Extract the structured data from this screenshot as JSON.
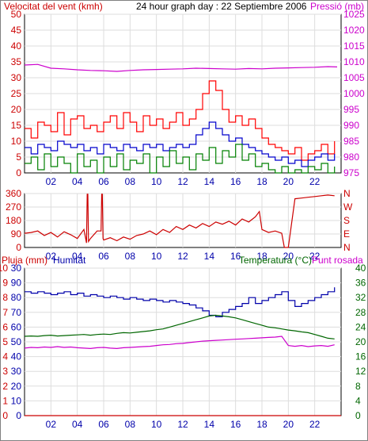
{
  "chart_data": [
    {
      "type": "line",
      "title": "24 hour graph day : 22 Septiembre 2006",
      "left_label": "Velocitat del vent (kmh)",
      "right_label": "Pressió (mb)",
      "left_ticks": [
        "0",
        "5",
        "10",
        "15",
        "20",
        "25",
        "30",
        "35",
        "40",
        "45",
        "50"
      ],
      "right_ticks": [
        "975",
        "980",
        "985",
        "990",
        "995",
        "1000",
        "1005",
        "1010",
        "1015",
        "1020",
        "1025"
      ],
      "ylim": [
        0,
        50
      ],
      "y2lim": [
        975,
        1025
      ],
      "x_ticks": [
        "02",
        "04",
        "06",
        "08",
        "10",
        "12",
        "14",
        "16",
        "18",
        "20",
        "22"
      ],
      "xlim": [
        0,
        24
      ],
      "grid": true,
      "colors": {
        "gust": "#ff0000",
        "average": "#0000cc",
        "minimum": "#008000",
        "pressure": "#cc00cc"
      },
      "series": [
        {
          "key": "gust",
          "axis": "left",
          "x": [
            0,
            0.5,
            1,
            1.5,
            2,
            2.5,
            3,
            3.5,
            4,
            4.5,
            5,
            5.5,
            6,
            6.5,
            7,
            7.5,
            8,
            8.5,
            9,
            9.5,
            10,
            10.5,
            11,
            11.5,
            12,
            12.5,
            13,
            13.5,
            14,
            14.5,
            15,
            15.5,
            16,
            16.5,
            17,
            17.5,
            18,
            18.5,
            19,
            19.5,
            20,
            20.5,
            21,
            21.5,
            22,
            22.5,
            23,
            23.5
          ],
          "values": [
            14,
            11,
            16,
            15,
            13,
            19,
            12,
            17,
            18,
            14,
            15,
            13,
            16,
            18,
            14,
            19,
            16,
            13,
            18,
            15,
            17,
            14,
            16,
            19,
            15,
            17,
            20,
            25,
            29,
            26,
            20,
            16,
            18,
            15,
            17,
            14,
            11,
            9,
            8,
            7,
            6,
            8,
            4,
            6,
            7,
            9,
            6,
            10
          ]
        },
        {
          "key": "average",
          "axis": "left",
          "x": [
            0,
            0.5,
            1,
            1.5,
            2,
            2.5,
            3,
            3.5,
            4,
            4.5,
            5,
            5.5,
            6,
            6.5,
            7,
            7.5,
            8,
            8.5,
            9,
            9.5,
            10,
            10.5,
            11,
            11.5,
            12,
            12.5,
            13,
            13.5,
            14,
            14.5,
            15,
            15.5,
            16,
            16.5,
            17,
            17.5,
            18,
            18.5,
            19,
            19.5,
            20,
            20.5,
            21,
            21.5,
            22,
            22.5,
            23,
            23.5
          ],
          "values": [
            8,
            6,
            9,
            8,
            7,
            10,
            9,
            8,
            9,
            7,
            8,
            6,
            9,
            8,
            7,
            9,
            8,
            7,
            9,
            8,
            9,
            7,
            8,
            9,
            8,
            9,
            12,
            14,
            16,
            14,
            12,
            10,
            11,
            9,
            8,
            7,
            6,
            5,
            4,
            5,
            3,
            4,
            2,
            4,
            5,
            6,
            4,
            6
          ]
        },
        {
          "key": "minimum",
          "axis": "left",
          "x": [
            0,
            0.5,
            1,
            1.5,
            2,
            2.5,
            3,
            3.5,
            4,
            4.5,
            5,
            5.5,
            6,
            6.5,
            7,
            7.5,
            8,
            8.5,
            9,
            9.5,
            10,
            10.5,
            11,
            11.5,
            12,
            12.5,
            13,
            13.5,
            14,
            14.5,
            15,
            15.5,
            16,
            16.5,
            17,
            17.5,
            18,
            18.5,
            19,
            19.5,
            20,
            20.5,
            21,
            21.5,
            22,
            22.5,
            23,
            23.5
          ],
          "values": [
            3,
            5,
            1,
            6,
            2,
            5,
            3,
            0,
            6,
            2,
            4,
            0,
            5,
            2,
            6,
            1,
            4,
            3,
            6,
            0,
            5,
            2,
            7,
            3,
            5,
            1,
            6,
            4,
            8,
            3,
            7,
            5,
            9,
            4,
            6,
            2,
            3,
            1,
            0,
            2,
            0,
            1,
            0,
            2,
            1,
            3,
            0,
            2
          ]
        },
        {
          "key": "pressure",
          "axis": "right",
          "x": [
            0,
            1,
            2,
            3,
            4,
            5,
            6,
            7,
            8,
            9,
            10,
            11,
            12,
            13,
            14,
            15,
            16,
            17,
            18,
            19,
            20,
            21,
            22,
            23,
            23.7
          ],
          "values": [
            1009,
            1009.2,
            1008,
            1007.8,
            1007.5,
            1007.3,
            1007.2,
            1007,
            1007.3,
            1007.5,
            1007.6,
            1007.7,
            1007.8,
            1008,
            1007.9,
            1007.8,
            1007.7,
            1007.9,
            1007.8,
            1008,
            1008.1,
            1008.2,
            1008.3,
            1008.5,
            1008.4
          ]
        }
      ]
    },
    {
      "type": "line",
      "left_ticks": [
        "0",
        "90",
        "180",
        "270",
        "360"
      ],
      "right_ticks": [
        "N",
        "E",
        "S",
        "W",
        "N"
      ],
      "ylim": [
        0,
        360
      ],
      "x_ticks": [
        "02",
        "04",
        "06",
        "08",
        "10",
        "12",
        "14",
        "16",
        "18",
        "20",
        "22"
      ],
      "xlim": [
        0,
        24
      ],
      "grid": true,
      "colors": {
        "direction": "#cc0000"
      },
      "series": [
        {
          "key": "direction",
          "x": [
            0,
            0.5,
            1,
            1.5,
            2,
            2.5,
            3,
            3.5,
            4,
            4.5,
            4.7,
            4.75,
            4.8,
            4.85,
            5,
            5.5,
            5.8,
            5.85,
            5.9,
            5.95,
            6,
            6.5,
            7,
            7.5,
            8,
            8.5,
            9,
            9.5,
            10,
            10.5,
            11,
            11.5,
            12,
            12.5,
            13,
            13.5,
            14,
            14.5,
            15,
            15.5,
            16,
            16.5,
            17,
            17.5,
            17.8,
            18,
            18.5,
            19,
            19.5,
            19.7,
            20,
            20.5,
            21,
            21.5,
            22,
            22.5,
            23,
            23.5
          ],
          "values": [
            95,
            100,
            110,
            80,
            100,
            70,
            105,
            85,
            60,
            120,
            30,
            355,
            355,
            40,
            60,
            110,
            110,
            355,
            355,
            60,
            50,
            65,
            45,
            70,
            55,
            80,
            90,
            110,
            85,
            120,
            100,
            140,
            120,
            150,
            130,
            160,
            140,
            170,
            155,
            175,
            150,
            190,
            170,
            205,
            240,
            120,
            100,
            110,
            95,
            0,
            0,
            325,
            330,
            335,
            340,
            345,
            350,
            345
          ]
        }
      ]
    },
    {
      "type": "line",
      "left_label_rain": "Pluja (mm)",
      "left_label_humidity": "Humitat",
      "right_label_temperature": "Temperatura (°C)",
      "right_label_dew": "Punt rosada",
      "rain_ticks": [
        "0",
        "1",
        "2",
        "3",
        "4",
        "5",
        "6",
        "7",
        "8",
        "9",
        "10"
      ],
      "humidity_ticks": [
        "0",
        "10",
        "20",
        "30",
        "40",
        "50",
        "60",
        "70",
        "80",
        "90",
        "30"
      ],
      "temperature_ticks": [
        "0",
        "4",
        "8",
        "12",
        "16",
        "20",
        "24",
        "28",
        "32",
        "36",
        "40"
      ],
      "ylim": [
        0,
        100
      ],
      "y2lim": [
        0,
        40
      ],
      "x_ticks": [
        "02",
        "04",
        "06",
        "08",
        "10",
        "12",
        "14",
        "16",
        "18",
        "20",
        "22"
      ],
      "xlim": [
        0,
        24
      ],
      "grid": true,
      "colors": {
        "humidity": "#0000aa",
        "temperature": "#006600",
        "dew": "#cc00cc",
        "rain": "#cc0000"
      },
      "series": [
        {
          "key": "rain",
          "axis": "rain",
          "x": [
            0,
            24
          ],
          "values": [
            0,
            0
          ]
        },
        {
          "key": "humidity",
          "axis": "humidity",
          "x": [
            0,
            0.5,
            1,
            1.5,
            2,
            2.5,
            3,
            3.5,
            4,
            4.5,
            5,
            5.5,
            6,
            6.5,
            7,
            7.5,
            8,
            8.5,
            9,
            9.5,
            10,
            10.5,
            11,
            11.5,
            12,
            12.5,
            13,
            13.5,
            14,
            14.5,
            15,
            15.5,
            16,
            16.5,
            17,
            17.5,
            18,
            18.5,
            19,
            19.5,
            20,
            20.5,
            21,
            21.5,
            22,
            22.5,
            23,
            23.5
          ],
          "values": [
            84,
            83,
            84,
            83,
            82,
            83,
            84,
            82,
            83,
            81,
            82,
            81,
            80,
            81,
            80,
            79,
            80,
            79,
            78,
            79,
            78,
            77,
            78,
            77,
            76,
            75,
            73,
            71,
            68,
            67,
            70,
            72,
            74,
            76,
            80,
            76,
            78,
            80,
            82,
            84,
            78,
            74,
            76,
            78,
            80,
            82,
            84,
            87
          ]
        },
        {
          "key": "temperature",
          "axis": "temperature",
          "x": [
            0,
            0.5,
            1,
            1.5,
            2,
            2.5,
            3,
            3.5,
            4,
            4.5,
            5,
            5.5,
            6,
            6.5,
            7,
            7.5,
            8,
            8.5,
            9,
            9.5,
            10,
            10.5,
            11,
            11.5,
            12,
            12.5,
            13,
            13.5,
            14,
            14.5,
            15,
            15.5,
            16,
            16.5,
            17,
            17.5,
            18,
            18.5,
            19,
            19.5,
            20,
            20.5,
            21,
            21.5,
            22,
            22.5,
            23,
            23.5
          ],
          "values": [
            21.5,
            21.6,
            21.5,
            21.7,
            21.8,
            21.6,
            21.7,
            21.8,
            21.9,
            22,
            21.8,
            22,
            22.1,
            22,
            22.3,
            22.5,
            22.4,
            22.6,
            22.8,
            23,
            23.3,
            23.5,
            24,
            24.5,
            25,
            25.5,
            26,
            26.5,
            27,
            27.2,
            27,
            26.8,
            26.5,
            26,
            25.5,
            25,
            24.5,
            24,
            23.8,
            23.5,
            23.2,
            23,
            22.7,
            22.5,
            22,
            21.5,
            21,
            20.8
          ]
        },
        {
          "key": "dew",
          "axis": "temperature",
          "x": [
            0,
            0.5,
            1,
            1.5,
            2,
            2.5,
            3,
            3.5,
            4,
            4.5,
            5,
            5.5,
            6,
            6.5,
            7,
            7.5,
            8,
            8.5,
            9,
            9.5,
            10,
            10.5,
            11,
            11.5,
            12,
            12.5,
            13,
            13.5,
            14,
            14.5,
            15,
            15.5,
            16,
            16.5,
            17,
            17.5,
            18,
            18.5,
            19,
            19.5,
            20,
            20.5,
            21,
            21.5,
            22,
            22.5,
            23,
            23.5
          ],
          "values": [
            18.3,
            18.5,
            18.4,
            18.6,
            18.5,
            18.7,
            18.5,
            18.6,
            18.4,
            18.3,
            18.2,
            18.4,
            18.5,
            18.3,
            18.2,
            18.4,
            18.5,
            18.6,
            18.7,
            18.8,
            19,
            19.2,
            19.3,
            19.5,
            19.6,
            19.8,
            20,
            20.2,
            20.3,
            20.4,
            20.5,
            20.6,
            20.7,
            20.8,
            20.9,
            21,
            21.1,
            21.2,
            21.3,
            21.5,
            19,
            18.8,
            19,
            18.7,
            18.9,
            19,
            18.8,
            19.2
          ]
        }
      ]
    }
  ]
}
